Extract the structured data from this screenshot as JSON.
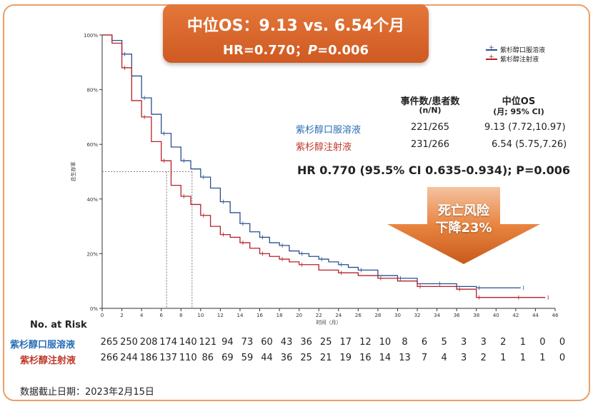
{
  "banner": {
    "line1": "中位OS：9.13 vs. 6.54个月",
    "line2_prefix": "HR=0.770；",
    "line2_p": "P",
    "line2_suffix": "=0.006"
  },
  "legend": [
    {
      "label": "紫杉醇口服溶液",
      "color": "#2a4f8f"
    },
    {
      "label": "紫杉醇注射液",
      "color": "#b5202a"
    }
  ],
  "stats_table": {
    "col1_header": "事件数/患者数",
    "col1_sub": "(n/N)",
    "col2_header": "中位OS",
    "col2_sub": "(月; 95% CI)",
    "rows": [
      {
        "arm": "紫杉醇口服溶液",
        "events": "221/265",
        "median": "9.13 (7.72,10.97)",
        "color": "#2a6fb6"
      },
      {
        "arm": "紫杉醇注射液",
        "events": "231/266",
        "median": "6.54 (5.75,7.26)",
        "color": "#c0392b"
      }
    ]
  },
  "hr_text": "HR 0.770 (95.5% CI 0.635-0.934); P=0.006",
  "callout": {
    "line1": "死亡风险",
    "line2": "下降23%"
  },
  "risk_table": {
    "title": "No. at Risk",
    "rows": [
      {
        "label": "紫杉醇口服溶液",
        "color": "#2a6fb6",
        "values": [
          "265",
          "250",
          "208",
          "174",
          "140",
          "121",
          "94",
          "73",
          "60",
          "43",
          "36",
          "25",
          "17",
          "12",
          "10",
          "8",
          "6",
          "5",
          "3",
          "3",
          "2",
          "1",
          "0",
          "0"
        ]
      },
      {
        "label": "紫杉醇注射液",
        "color": "#c0392b",
        "values": [
          "266",
          "244",
          "186",
          "137",
          "110",
          "86",
          "69",
          "59",
          "44",
          "36",
          "25",
          "21",
          "19",
          "16",
          "14",
          "13",
          "7",
          "4",
          "3",
          "2",
          "1",
          "1",
          "1",
          "0"
        ]
      }
    ]
  },
  "footer": "数据截止日期：2023年2月15日",
  "chart_data": {
    "type": "line",
    "title": "",
    "xlabel": "时间（月）",
    "ylabel": "总生存率",
    "xlim": [
      0,
      46
    ],
    "ylim": [
      0,
      100
    ],
    "x_ticks": [
      0,
      2,
      4,
      6,
      8,
      10,
      12,
      14,
      16,
      18,
      20,
      22,
      24,
      26,
      28,
      30,
      32,
      34,
      36,
      38,
      40,
      42,
      44,
      46
    ],
    "y_ticks": [
      "0%",
      "20%",
      "40%",
      "60%",
      "80%",
      "100%"
    ],
    "reference": {
      "y": 50,
      "medians": [
        6.54,
        9.13
      ]
    },
    "series": [
      {
        "name": "紫杉醇口服溶液",
        "color": "#2a4f8f",
        "x": [
          0,
          1,
          2,
          3,
          4,
          5,
          6,
          7,
          8,
          9,
          10,
          11,
          12,
          13,
          14,
          15,
          16,
          17,
          18,
          19,
          20,
          21,
          22,
          23,
          24,
          25,
          26,
          28,
          30,
          32,
          34,
          36,
          38,
          40,
          42.5
        ],
        "y": [
          100,
          98,
          93,
          85,
          77,
          71,
          64,
          59,
          54,
          51,
          48,
          44,
          39,
          35,
          31,
          28,
          26,
          24,
          23,
          21,
          20,
          19,
          18,
          17,
          16,
          15,
          14,
          12,
          11,
          9,
          9,
          8,
          7.5,
          7.5,
          7.5
        ]
      },
      {
        "name": "紫杉醇注射液",
        "color": "#b5202a",
        "x": [
          0,
          1,
          2,
          3,
          4,
          5,
          6,
          7,
          8,
          9,
          10,
          11,
          12,
          13,
          14,
          15,
          16,
          17,
          18,
          19,
          20,
          22,
          24,
          26,
          28,
          30,
          32,
          34,
          36,
          37,
          38,
          40,
          42,
          44,
          45
        ],
        "y": [
          100,
          97,
          88,
          76,
          70,
          61,
          54,
          45,
          41,
          38,
          34,
          30,
          27,
          26,
          24,
          22,
          20,
          19,
          18,
          17,
          16,
          14,
          13,
          12,
          11,
          10,
          8,
          8,
          7,
          7,
          4,
          4,
          4,
          4,
          4
        ]
      }
    ]
  }
}
